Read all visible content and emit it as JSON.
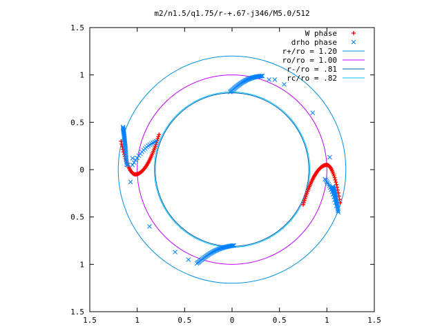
{
  "chart_data": {
    "type": "scatter",
    "title": "m2/n1.5/q1.75/r-+.67-j346/M5.0/512",
    "xlim": [
      -1.5,
      1.5
    ],
    "ylim": [
      -1.5,
      1.5
    ],
    "x_ticks": [
      -1.5,
      -1,
      -0.5,
      0,
      0.5,
      1,
      1.5
    ],
    "y_ticks": [
      -1.5,
      -1,
      -0.5,
      0,
      0.5,
      1,
      1.5
    ],
    "x_tick_labels": [
      "1.5",
      "1",
      "0.5",
      "0",
      "0.5",
      "1",
      "1.5"
    ],
    "y_tick_labels": [
      "1.5",
      "1",
      "0.5",
      "0",
      "0.5",
      "1",
      "1.5"
    ],
    "grid": false,
    "legend_position": "top-right",
    "series": [
      {
        "name": "W phase",
        "kind": "points",
        "marker": "+",
        "color": "#ff0000",
        "arcs": [
          {
            "center": [
              -1.02,
              -0.05
            ],
            "curve": "smile",
            "x_from": -1.17,
            "x_to": -0.77,
            "amp_left": 0.35,
            "amp_right": 0.42
          },
          {
            "center": [
              1.0,
              0.05
            ],
            "curve": "frown",
            "x_from": 0.75,
            "x_to": 1.14,
            "amp_left": 0.42,
            "amp_right": 0.4
          }
        ]
      },
      {
        "name": "drho phase",
        "kind": "points",
        "marker": "x",
        "color": "#0080ff",
        "arcs": [
          {
            "from": [
              -1.15,
              0.45
            ],
            "to": [
              -1.11,
              0.05
            ],
            "count": 30
          },
          {
            "from": [
              -0.8,
              0.3
            ],
            "to": [
              -1.05,
              0.05
            ],
            "count": 16
          },
          {
            "from": [
              -0.02,
              0.82
            ],
            "to": [
              0.32,
              0.99
            ],
            "count": 42
          },
          {
            "from": [
              1.06,
              -0.18
            ],
            "to": [
              1.12,
              -0.45
            ],
            "count": 26
          },
          {
            "from": [
              0.98,
              -0.1
            ],
            "to": [
              1.1,
              -0.38
            ],
            "count": 14
          },
          {
            "from": [
              -0.37,
              -0.99
            ],
            "to": [
              0.02,
              -0.8
            ],
            "count": 42
          }
        ],
        "isolated": [
          [
            -1.05,
            0.12
          ],
          [
            -1.1,
            0.05
          ],
          [
            -1.07,
            -0.13
          ],
          [
            -0.87,
            -0.6
          ],
          [
            -0.6,
            -0.87
          ],
          [
            -0.46,
            -0.95
          ],
          [
            0.39,
            0.95
          ],
          [
            0.45,
            0.95
          ],
          [
            0.55,
            0.9
          ],
          [
            0.85,
            0.6
          ],
          [
            1.03,
            0.13
          ]
        ]
      },
      {
        "name": "r+/ro = 1.20",
        "kind": "circle",
        "radius": 1.2,
        "color": "#0090e0"
      },
      {
        "name": "ro/ro = 1.00",
        "kind": "circle",
        "radius": 1.0,
        "color": "#c000ff"
      },
      {
        "name": "r-/ro = .81",
        "kind": "circle",
        "radius": 0.81,
        "color": "#0060b0"
      },
      {
        "name": "rc/ro = .82",
        "kind": "circle",
        "radius": 0.82,
        "color": "#00c0ff"
      }
    ]
  }
}
